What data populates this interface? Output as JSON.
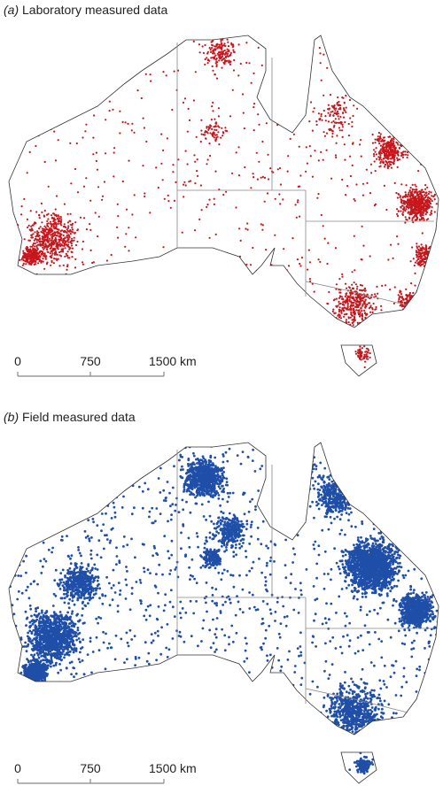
{
  "panels": [
    {
      "label": "(a)",
      "title": "Laboratory measured data",
      "scale": [
        "0",
        "750",
        "1500 km"
      ]
    },
    {
      "label": "(b)",
      "title": "Field measured data",
      "scale": [
        "0",
        "750",
        "1500 km"
      ]
    }
  ]
}
